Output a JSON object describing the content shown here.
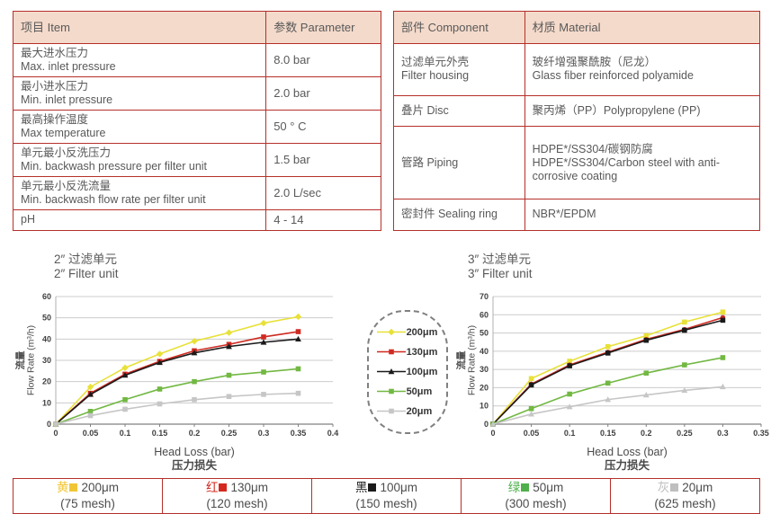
{
  "tables": {
    "spec": {
      "headers": [
        "项目 Item",
        "参数 Parameter"
      ],
      "rows": [
        {
          "item": [
            "最大进水压力",
            "Max. inlet pressure"
          ],
          "value": "8.0 bar"
        },
        {
          "item": [
            "最小进水压力",
            "Min. inlet pressure"
          ],
          "value": "2.0 bar"
        },
        {
          "item": [
            "最高操作温度",
            "Max temperature"
          ],
          "value": "50 ° C"
        },
        {
          "item": [
            "单元最小反洗压力",
            "Min. backwash pressure per filter unit"
          ],
          "value": "1.5 bar"
        },
        {
          "item": [
            "单元最小反洗流量",
            "Min. backwash flow rate per filter unit"
          ],
          "value": "2.0 L/sec"
        },
        {
          "item": [
            "pH"
          ],
          "value": "4 - 14"
        }
      ]
    },
    "material": {
      "headers": [
        "部件 Component",
        "材质 Material"
      ],
      "rows": [
        {
          "component": [
            "过滤单元外壳",
            "Filter housing"
          ],
          "material": [
            "玻纤增强聚酰胺（尼龙）",
            "Glass fiber reinforced polyamide"
          ]
        },
        {
          "component": [
            "叠片 Disc"
          ],
          "material": [
            "聚丙烯（PP）Polypropylene (PP)"
          ]
        },
        {
          "component": [
            "管路 Piping"
          ],
          "material": [
            "HDPE*/SS304/碳钢防腐",
            "HDPE*/SS304/Carbon steel with anti-corrosive coating"
          ]
        },
        {
          "component": [
            "密封件 Sealing ring"
          ],
          "material": [
            "NBR*/EPDM"
          ]
        }
      ]
    }
  },
  "chart_data": [
    {
      "type": "line",
      "title_cn": "2″ 过滤单元",
      "title_en": "2″ Filter unit",
      "ylabel_cn": "流量",
      "ylabel_en": "Flow Rate (m³/h)",
      "xlabel_en": "Head Loss (bar)",
      "xlabel_cn": "压力损失",
      "xlim": [
        0,
        0.4
      ],
      "ylim": [
        0,
        60
      ],
      "xticks": [
        0,
        0.05,
        0.1,
        0.15,
        0.2,
        0.25,
        0.3,
        0.35,
        0.4
      ],
      "yticks": [
        0,
        10,
        20,
        30,
        40,
        50,
        60
      ],
      "grid": true,
      "x": [
        0,
        0.05,
        0.1,
        0.15,
        0.2,
        0.25,
        0.3,
        0.35
      ],
      "series": [
        {
          "name": "200μm",
          "color": "#e8e138",
          "marker": "diamond",
          "values": [
            0,
            17.5,
            26.5,
            33,
            39,
            43,
            47.5,
            50.5
          ]
        },
        {
          "name": "130μm",
          "color": "#cf2a21",
          "marker": "square",
          "values": [
            0,
            14.5,
            23.5,
            29.5,
            34.5,
            37.5,
            41,
            43.5
          ]
        },
        {
          "name": "100μm",
          "color": "#1a1a1a",
          "marker": "triangle",
          "values": [
            0,
            14,
            23,
            29,
            33.5,
            36.5,
            38.5,
            40
          ]
        },
        {
          "name": "50μm",
          "color": "#72b843",
          "marker": "square",
          "values": [
            0,
            6,
            11.5,
            16.5,
            20,
            23,
            24.5,
            26
          ]
        },
        {
          "name": "20μm",
          "color": "#c6c6c6",
          "marker": "square",
          "values": [
            0,
            4,
            7,
            9.5,
            11.5,
            13,
            14,
            14.5
          ]
        }
      ]
    },
    {
      "type": "line",
      "title_cn": "3″ 过滤单元",
      "title_en": "3″ Filter unit",
      "ylabel_cn": "流量",
      "ylabel_en": "Flow Rate (m³/h)",
      "xlabel_en": "Head Loss (bar)",
      "xlabel_cn": "压力损失",
      "xlim": [
        0,
        0.35
      ],
      "ylim": [
        0,
        70
      ],
      "xticks": [
        0,
        0.05,
        0.1,
        0.15,
        0.2,
        0.25,
        0.3,
        0.35
      ],
      "yticks": [
        0,
        10,
        20,
        30,
        40,
        50,
        60,
        70
      ],
      "grid": true,
      "x": [
        0,
        0.05,
        0.1,
        0.15,
        0.2,
        0.25,
        0.3
      ],
      "series": [
        {
          "name": "200μm",
          "color": "#e8e138",
          "marker": "square",
          "values": [
            0,
            25,
            34.5,
            42.5,
            48.5,
            56,
            61.5
          ]
        },
        {
          "name": "130μm",
          "color": "#cf2a21",
          "marker": "circle",
          "values": [
            0,
            22,
            32.5,
            39.5,
            46.5,
            52,
            58.5
          ]
        },
        {
          "name": "100μm",
          "color": "#1a1a1a",
          "marker": "square",
          "values": [
            0,
            21.5,
            32,
            39,
            46,
            51.5,
            57
          ]
        },
        {
          "name": "50μm",
          "color": "#72b843",
          "marker": "square",
          "values": [
            0,
            8.5,
            16.5,
            22.5,
            28,
            32.5,
            36.5
          ]
        },
        {
          "name": "20μm",
          "color": "#c6c6c6",
          "marker": "triangle",
          "values": [
            0,
            5.5,
            9.5,
            13.5,
            16,
            18.5,
            20.5
          ]
        }
      ]
    }
  ],
  "legend_box": {
    "items": [
      {
        "label": "200μm",
        "marker": "diamond",
        "color": "#e8e138"
      },
      {
        "label": "130μm",
        "marker": "square",
        "color": "#cf2a21"
      },
      {
        "label": "100μm",
        "marker": "triangle",
        "color": "#1a1a1a"
      },
      {
        "label": "50μm",
        "marker": "square",
        "color": "#72b843"
      },
      {
        "label": "20μm",
        "marker": "square",
        "color": "#c6c6c6"
      }
    ]
  },
  "bottom_legend": {
    "cells": [
      {
        "color_name": "黄",
        "size": "200μm",
        "mesh": "(75 mesh)",
        "color": "#f0c635"
      },
      {
        "color_name": "红",
        "size": "130μm",
        "mesh": "(120 mesh)",
        "color": "#d5281e"
      },
      {
        "color_name": "黑",
        "size": "100μm",
        "mesh": "(150 mesh)",
        "color": "#1a1a1a"
      },
      {
        "color_name": "绿",
        "size": "50μm",
        "mesh": "(300 mesh)",
        "color": "#4db04a"
      },
      {
        "color_name": "灰",
        "size": "20μm",
        "mesh": "(625 mesh)",
        "color": "#bfbfbf"
      }
    ]
  },
  "colors": {
    "table_border": "#b5302a",
    "table_header_bg": "#f4dacb",
    "grid_line": "#cccccc",
    "axis_line": "#808080"
  }
}
